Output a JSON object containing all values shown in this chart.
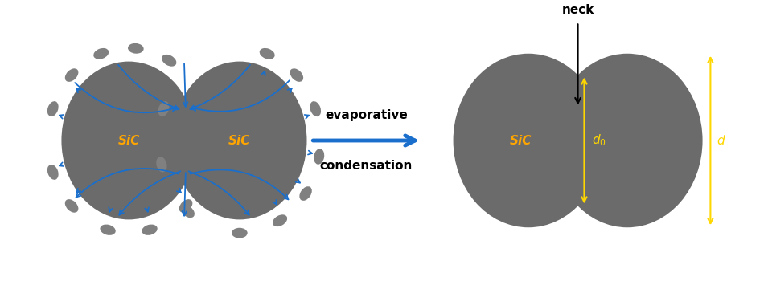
{
  "bg_color": "#ffffff",
  "grain_color": "#6b6b6b",
  "particle_color": "#808080",
  "sic_color": "#FFA500",
  "arrow_color": "#1a6fcc",
  "yellow_color": "#FFD700",
  "black_color": "#000000",
  "evap_text": "evaporative",
  "cond_text": "condensation",
  "neck_text": "neck",
  "sic_text": "SiC"
}
